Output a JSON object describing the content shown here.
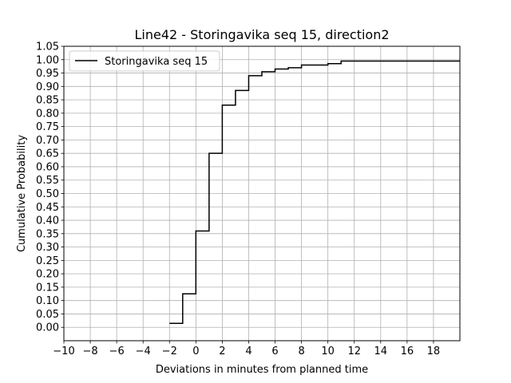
{
  "chart_data": {
    "type": "line",
    "title": "Line42 - Storingavika seq 15, direction2",
    "xlabel": "Deviations in minutes from planned time",
    "ylabel": "Cumulative Probability",
    "xlim": [
      -10,
      20
    ],
    "ylim": [
      -0.05,
      1.05
    ],
    "xticks": [
      "-10",
      "-8",
      "-6",
      "-4",
      "-2",
      "0",
      "2",
      "4",
      "6",
      "8",
      "10",
      "12",
      "14",
      "16",
      "18"
    ],
    "yticks": [
      "0.00",
      "0.05",
      "0.10",
      "0.15",
      "0.20",
      "0.25",
      "0.30",
      "0.35",
      "0.40",
      "0.45",
      "0.50",
      "0.55",
      "0.60",
      "0.65",
      "0.70",
      "0.75",
      "0.80",
      "0.85",
      "0.90",
      "0.95",
      "1.00",
      "1.05"
    ],
    "grid": true,
    "legend_position": "top-left",
    "series": [
      {
        "name": "Storingavika seq 15",
        "color": "#000000",
        "step": "post",
        "x": [
          -2,
          -1,
          0,
          1,
          2,
          3,
          4,
          5,
          6,
          7,
          8,
          10,
          11,
          20
        ],
        "y": [
          0.015,
          0.125,
          0.36,
          0.65,
          0.83,
          0.885,
          0.94,
          0.955,
          0.965,
          0.97,
          0.98,
          0.985,
          0.995,
          0.995
        ]
      }
    ]
  }
}
